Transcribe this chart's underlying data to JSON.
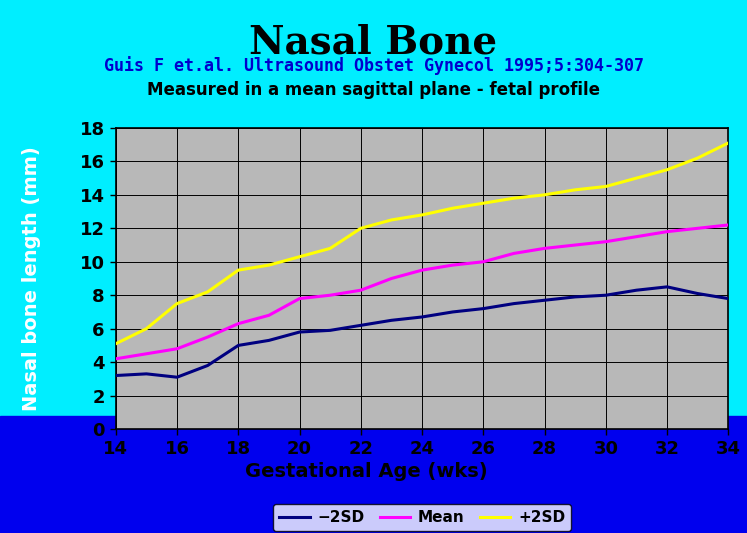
{
  "title": "Nasal Bone",
  "subtitle1": "Guis F et.al. Ultrasound Obstet Gynecol 1995;5:304-307",
  "subtitle2": "Measured in a mean sagittal plane - fetal profile",
  "xlabel": "Gestational Age (wks)",
  "ylabel": "Nasal bone length (mm)",
  "bg_cyan": "#00eeff",
  "bg_blue": "#0000ee",
  "plot_bg": "#b8b8b8",
  "label_red": "#dd0000",
  "weeks": [
    14,
    15,
    16,
    17,
    18,
    19,
    20,
    21,
    22,
    23,
    24,
    25,
    26,
    27,
    28,
    29,
    30,
    31,
    32,
    33,
    34
  ],
  "minus2sd": [
    3.2,
    3.3,
    3.1,
    3.8,
    5.0,
    5.3,
    5.8,
    5.9,
    6.2,
    6.5,
    6.7,
    7.0,
    7.2,
    7.5,
    7.7,
    7.9,
    8.0,
    8.3,
    8.5,
    8.1,
    7.8
  ],
  "mean": [
    4.2,
    4.5,
    4.8,
    5.5,
    6.3,
    6.8,
    7.8,
    8.0,
    8.3,
    9.0,
    9.5,
    9.8,
    10.0,
    10.5,
    10.8,
    11.0,
    11.2,
    11.5,
    11.8,
    12.0,
    12.2
  ],
  "plus2sd": [
    5.1,
    6.0,
    7.5,
    8.2,
    9.5,
    9.8,
    10.3,
    10.8,
    12.0,
    12.5,
    12.8,
    13.2,
    13.5,
    13.8,
    14.0,
    14.3,
    14.5,
    15.0,
    15.5,
    16.2,
    17.1
  ],
  "minus2sd_color": "#000080",
  "mean_color": "#ff00ff",
  "plus2sd_color": "#ffff00",
  "ylim": [
    0,
    18
  ],
  "xlim": [
    14,
    34
  ],
  "yticks": [
    0,
    2,
    4,
    6,
    8,
    10,
    12,
    14,
    16,
    18
  ],
  "xticks": [
    14,
    16,
    18,
    20,
    22,
    24,
    26,
    28,
    30,
    32,
    34
  ],
  "title_fontsize": 28,
  "subtitle1_fontsize": 12,
  "subtitle2_fontsize": 12,
  "tick_fontsize": 13,
  "axis_label_fontsize": 14,
  "legend_fontsize": 11,
  "line_width": 2.2
}
